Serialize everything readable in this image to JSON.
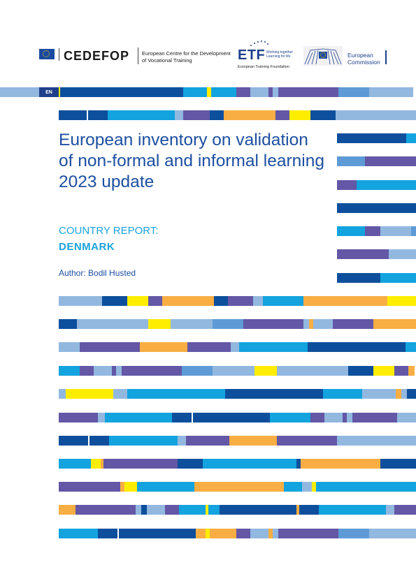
{
  "colors": {
    "navy": "#0d4f9c",
    "cyan": "#13a3de",
    "purple": "#6357a6",
    "lightblue": "#92b8e0",
    "midblue": "#5e9bd6",
    "orange": "#f8ae43",
    "yellow": "#ffed00",
    "text_blue": "#1d4fa0",
    "accent_cyan": "#1aa3dd"
  },
  "logos": {
    "cedefop": {
      "name": "CEDEFOP",
      "line1": "European Centre for the Development",
      "line2": "of Vocational Training"
    },
    "etf": {
      "name": "ETF",
      "tagline": "Working together Learning for life",
      "subtitle": "European Training Foundation"
    },
    "ec": {
      "line1": "European",
      "line2": "Commission"
    }
  },
  "language_tab": "EN",
  "title": "European inventory on validation of non-formal and informal learning 2023 update",
  "subtitle": "COUNTRY REPORT:",
  "country": "DENMARK",
  "author": "Author: Bodil Husted"
}
